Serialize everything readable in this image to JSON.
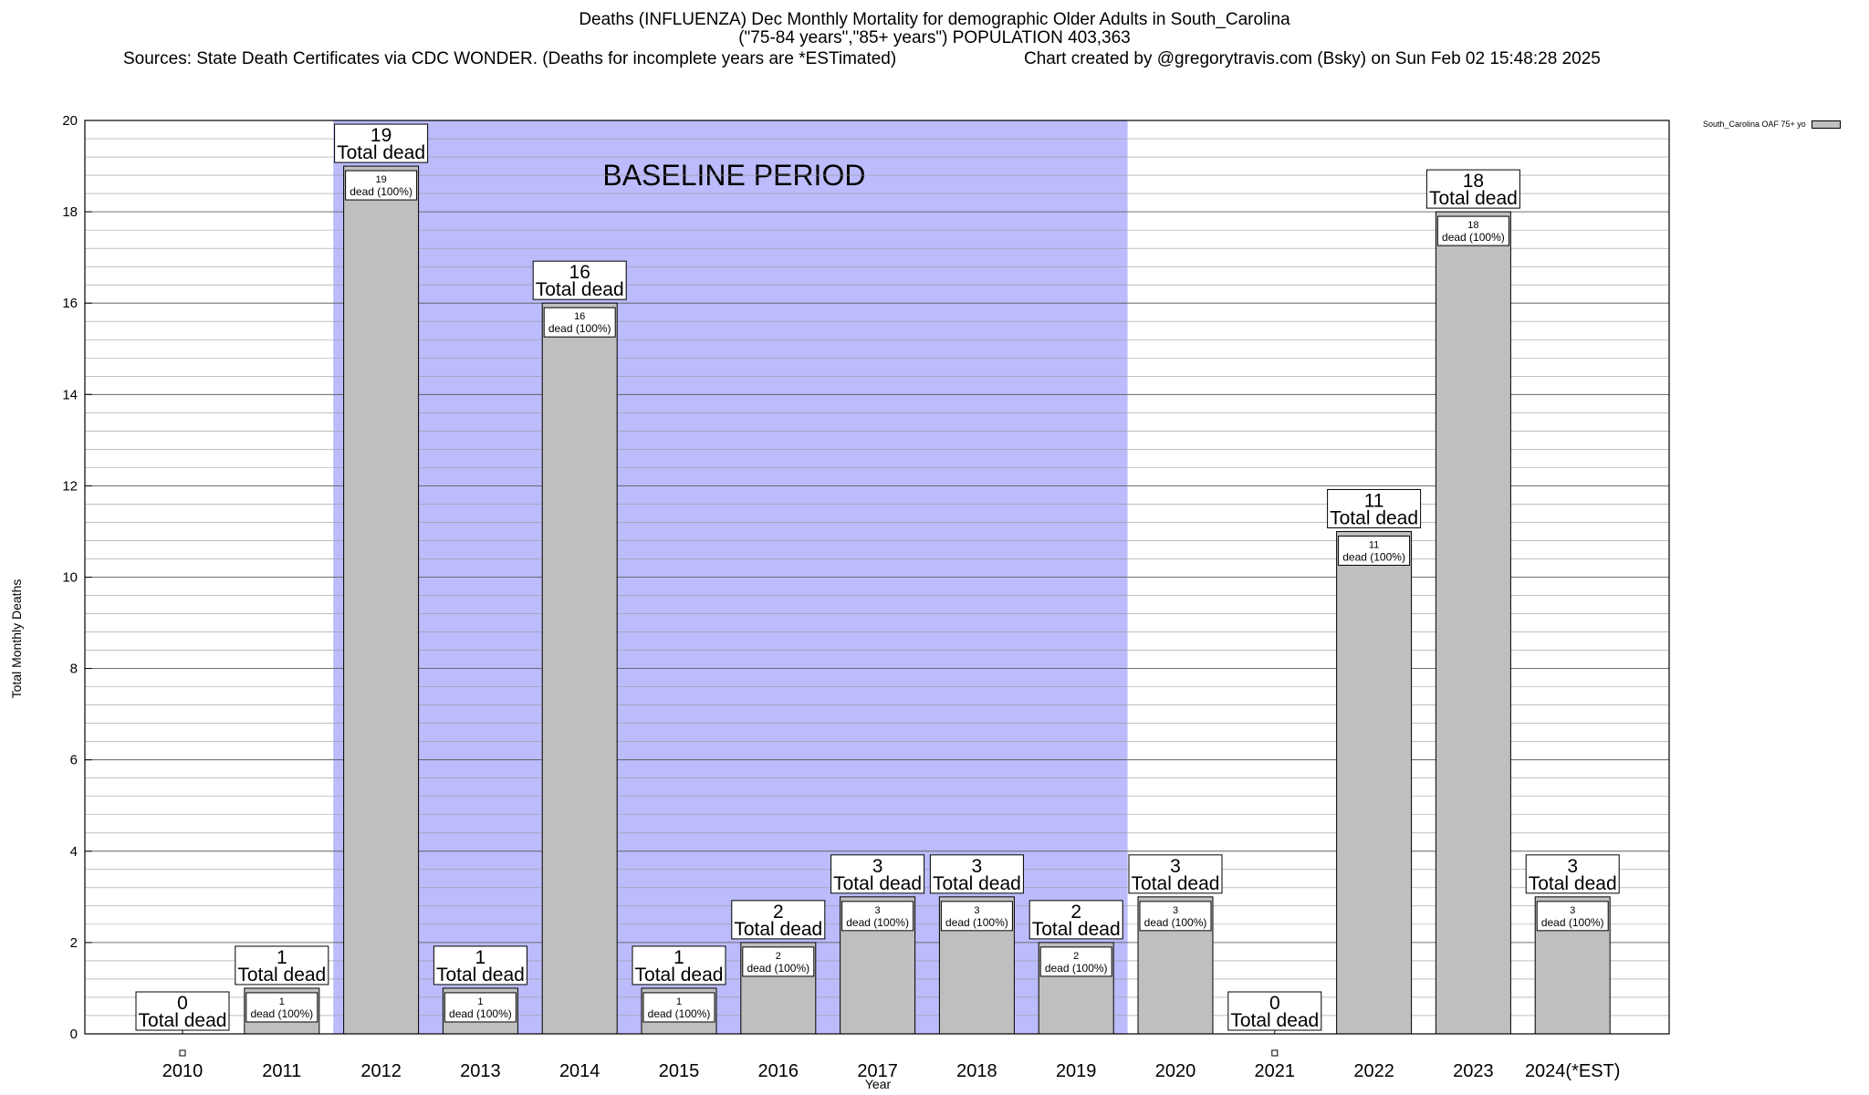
{
  "header": {
    "line1": "Deaths (INFLUENZA) Dec Monthly Mortality for demographic Older Adults in South_Carolina",
    "line2": "(\"75-84 years\",\"85+ years\") POPULATION 403,363",
    "sources": "Sources: State Death Certificates via CDC WONDER. (Deaths for incomplete years are *ESTimated)",
    "credit": "Chart created by @gregorytravis.com (Bsky) on Sun Feb 02 15:48:28 2025"
  },
  "colors": {
    "bar_fill": "#bfbfbf",
    "baseline_fill": "#bcbcfc",
    "grid": "#999999"
  },
  "chart_data": {
    "type": "bar",
    "xlabel": "Year",
    "ylabel": "Total Monthly Deaths",
    "ylim": [
      0,
      20
    ],
    "yticks": [
      0,
      2,
      4,
      6,
      8,
      10,
      12,
      14,
      16,
      18,
      20
    ],
    "grid": true,
    "categories": [
      "2010",
      "2011",
      "2012",
      "2013",
      "2014",
      "2015",
      "2016",
      "2017",
      "2018",
      "2019",
      "2020",
      "2021",
      "2022",
      "2023",
      "2024(*EST)"
    ],
    "series": [
      {
        "name": "South_Carolina OAF 75+ yo",
        "values": [
          0,
          1,
          19,
          1,
          16,
          1,
          2,
          3,
          3,
          2,
          3,
          0,
          11,
          18,
          3
        ]
      }
    ],
    "total_label_suffix": "Total dead",
    "inner_label_suffix": "dead (100%)",
    "baseline": {
      "label": "BASELINE PERIOD",
      "from_category": "2012",
      "to_category": "2019"
    },
    "legend_position": "top-right"
  }
}
